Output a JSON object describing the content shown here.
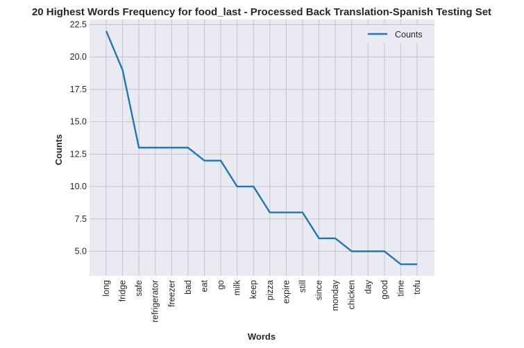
{
  "chart_data": {
    "type": "line",
    "title": "20 Highest Words Frequency for food_last - Processed Back Translation-Spanish Testing Set",
    "xlabel": "Words",
    "ylabel": "Counts",
    "categories": [
      "long",
      "fridge",
      "safe",
      "refrigerator",
      "freezer",
      "bad",
      "eat",
      "go",
      "milk",
      "keep",
      "pizza",
      "expire",
      "still",
      "since",
      "monday",
      "chicken",
      "day",
      "good",
      "time",
      "tofu"
    ],
    "series": [
      {
        "name": "Counts",
        "values": [
          22,
          19,
          13,
          13,
          13,
          13,
          12,
          12,
          10,
          10,
          8,
          8,
          8,
          6,
          6,
          5,
          5,
          5,
          4,
          4
        ],
        "color": "#1f77b4"
      }
    ],
    "ylim": [
      3.1,
      22.9
    ],
    "yticks": [
      5.0,
      7.5,
      10.0,
      12.5,
      15.0,
      17.5,
      20.0,
      22.5
    ],
    "ytick_labels": [
      "5.0",
      "7.5",
      "10.0",
      "12.5",
      "15.0",
      "17.5",
      "20.0",
      "22.5"
    ],
    "grid": true,
    "legend_position": "top-right",
    "colors": {
      "plot_background": "#eaeaf2",
      "grid": "#c4c4cc",
      "line": "#1f77b4"
    }
  }
}
